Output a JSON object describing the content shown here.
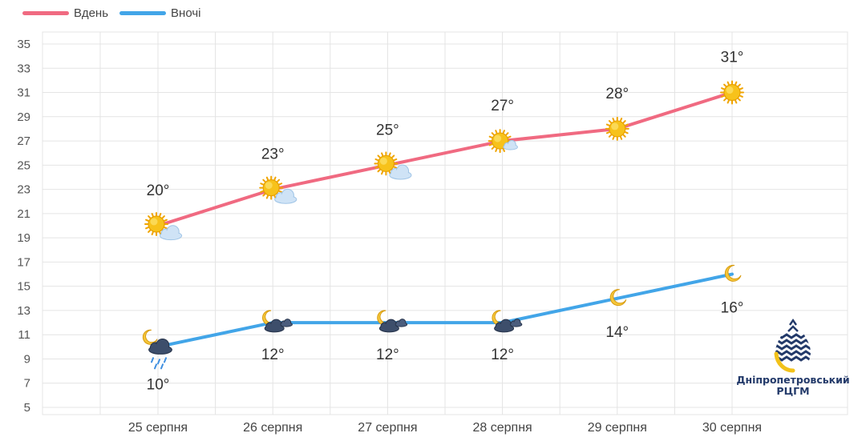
{
  "legend": {
    "day_label": "Вдень",
    "night_label": "Вночі"
  },
  "colors": {
    "day": "#f06a81",
    "night": "#42a5e8",
    "grid": "#e4e4e4",
    "logo_navy": "#233a6a",
    "logo_yellow": "#f2c21a"
  },
  "chart_data": {
    "type": "line",
    "categories": [
      "25 серпня",
      "26 серпня",
      "27 серпня",
      "28 серпня",
      "29 серпня",
      "30 серпня"
    ],
    "series": [
      {
        "name": "Вдень",
        "values": [
          20,
          23,
          25,
          27,
          28,
          31
        ],
        "labels": [
          "20°",
          "23°",
          "25°",
          "27°",
          "28°",
          "31°"
        ],
        "icons": [
          "sun-cloud-icon",
          "sun-cloud-icon",
          "sun-cloud-icon",
          "sun-small-cloud-icon",
          "sun-icon",
          "sun-icon"
        ]
      },
      {
        "name": "Вночі",
        "values": [
          10,
          12,
          12,
          12,
          14,
          16
        ],
        "labels": [
          "10°",
          "12°",
          "12°",
          "12°",
          "14°",
          "16°"
        ],
        "icons": [
          "moon-rain-cloud-icon",
          "moon-dark-cloud-icon",
          "moon-dark-cloud-icon",
          "moon-dark-cloud-icon",
          "moon-icon",
          "moon-icon"
        ]
      }
    ],
    "y_ticks": [
      5,
      7,
      9,
      11,
      13,
      15,
      17,
      19,
      21,
      23,
      25,
      27,
      29,
      31,
      33,
      35
    ],
    "ylim": [
      5,
      35
    ],
    "grid": true,
    "legend_position": "top-left"
  },
  "logo": {
    "line1": "Дніпропетровський",
    "line2": "РЦГМ"
  }
}
